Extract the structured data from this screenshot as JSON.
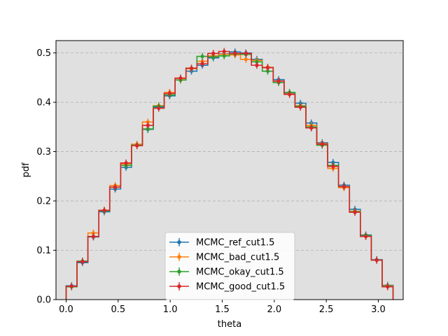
{
  "chart_data": {
    "type": "line",
    "xlabel": "theta",
    "ylabel": "pdf",
    "xlim": [
      -0.0975,
      3.2391
    ],
    "ylim": [
      0.0,
      0.525
    ],
    "x_ticks": [
      0.0,
      0.5,
      1.0,
      1.5,
      2.0,
      2.5,
      3.0
    ],
    "x_tick_labels": [
      "0.0",
      "0.5",
      "1.0",
      "1.5",
      "2.0",
      "2.5",
      "3.0"
    ],
    "y_ticks": [
      0.0,
      0.1,
      0.2,
      0.3,
      0.4,
      0.5
    ],
    "y_tick_labels": [
      "0.0",
      "0.1",
      "0.2",
      "0.3",
      "0.4",
      "0.5"
    ],
    "grid": "horizontal dashed",
    "background": "#e0e0e0",
    "legend_position": "lower center",
    "bin_edges": [
      0.0,
      0.1047,
      0.2094,
      0.3142,
      0.4189,
      0.5236,
      0.6283,
      0.733,
      0.8378,
      0.9425,
      1.0472,
      1.1519,
      1.2566,
      1.3614,
      1.4661,
      1.5708,
      1.6755,
      1.7802,
      1.885,
      1.9897,
      2.0944,
      2.1991,
      2.3038,
      2.4086,
      2.5133,
      2.618,
      2.7227,
      2.8274,
      2.9322,
      3.0369,
      3.1416
    ],
    "x": [
      0.0524,
      0.1571,
      0.2618,
      0.3665,
      0.4712,
      0.576,
      0.6807,
      0.7854,
      0.8901,
      0.9948,
      1.0996,
      1.2043,
      1.309,
      1.4137,
      1.5184,
      1.6232,
      1.7279,
      1.8326,
      1.9373,
      2.042,
      2.1468,
      2.2515,
      2.3562,
      2.4609,
      2.5656,
      2.6704,
      2.7751,
      2.8798,
      2.9845,
      3.0892
    ],
    "series": [
      {
        "name": "MCMC_ref_cut1.5",
        "color": "#1f77b4",
        "values": [
          0.028,
          0.075,
          0.127,
          0.178,
          0.224,
          0.268,
          0.313,
          0.345,
          0.39,
          0.413,
          0.448,
          0.463,
          0.475,
          0.49,
          0.498,
          0.502,
          0.5,
          0.487,
          0.471,
          0.446,
          0.419,
          0.398,
          0.358,
          0.318,
          0.278,
          0.232,
          0.183,
          0.131,
          0.081,
          0.029
        ]
      },
      {
        "name": "MCMC_bad_cut1.5",
        "color": "#ff7f0e",
        "values": [
          0.026,
          0.077,
          0.135,
          0.181,
          0.231,
          0.275,
          0.315,
          0.36,
          0.393,
          0.42,
          0.448,
          0.468,
          0.483,
          0.494,
          0.497,
          0.496,
          0.487,
          0.485,
          0.471,
          0.443,
          0.417,
          0.393,
          0.353,
          0.316,
          0.266,
          0.227,
          0.179,
          0.129,
          0.08,
          0.028
        ]
      },
      {
        "name": "MCMC_okay_cut1.5",
        "color": "#2ca02c",
        "values": [
          0.026,
          0.078,
          0.128,
          0.18,
          0.228,
          0.272,
          0.313,
          0.346,
          0.392,
          0.415,
          0.445,
          0.469,
          0.493,
          0.492,
          0.494,
          0.498,
          0.497,
          0.482,
          0.463,
          0.44,
          0.42,
          0.392,
          0.35,
          0.313,
          0.272,
          0.229,
          0.178,
          0.13,
          0.08,
          0.027
        ]
      },
      {
        "name": "MCMC_good_cut1.5",
        "color": "#d62728",
        "values": [
          0.027,
          0.077,
          0.128,
          0.181,
          0.228,
          0.277,
          0.312,
          0.353,
          0.388,
          0.418,
          0.449,
          0.469,
          0.478,
          0.499,
          0.503,
          0.499,
          0.499,
          0.475,
          0.47,
          0.443,
          0.416,
          0.39,
          0.348,
          0.315,
          0.27,
          0.229,
          0.177,
          0.128,
          0.08,
          0.026
        ]
      }
    ]
  }
}
